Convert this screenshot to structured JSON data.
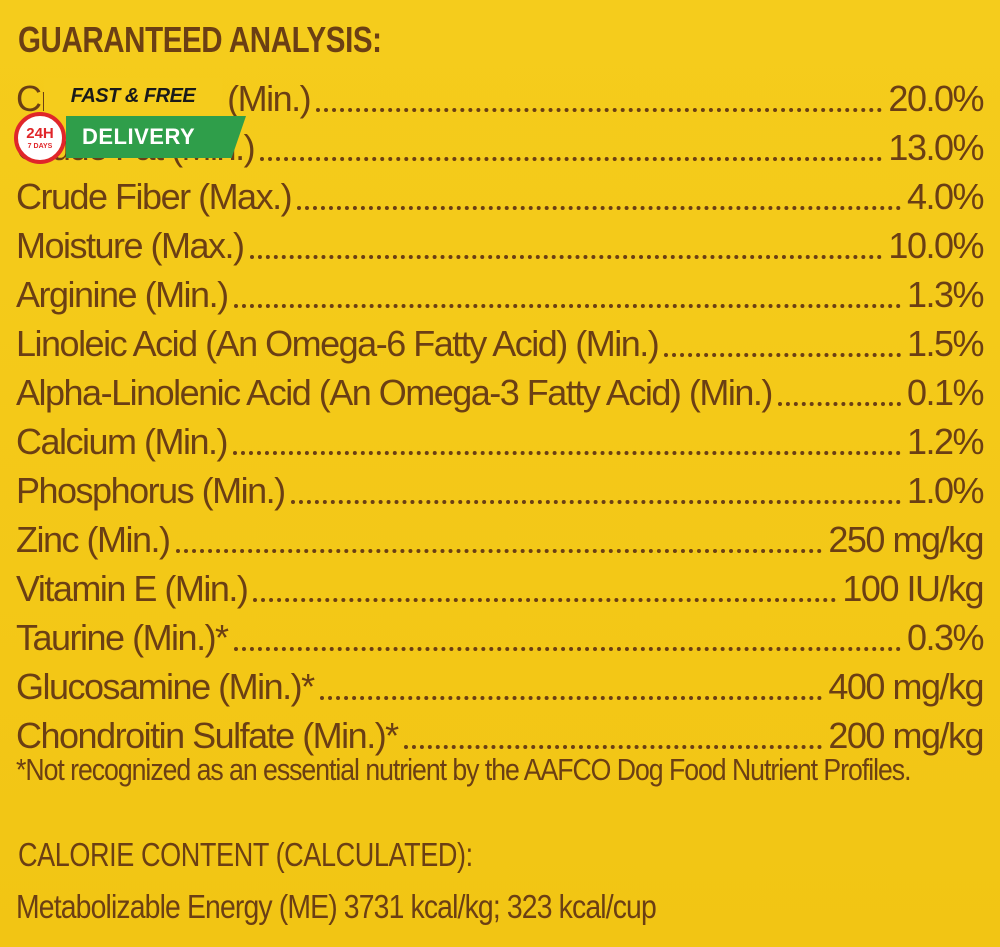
{
  "heading": "GUARANTEED ANALYSIS:",
  "rows": [
    {
      "name": "Crude Protein (Min.)",
      "value": "20.0%"
    },
    {
      "name": "Crude Fat (Min.)",
      "value": "13.0%"
    },
    {
      "name": "Crude Fiber (Max.)",
      "value": "4.0%"
    },
    {
      "name": "Moisture (Max.)",
      "value": "10.0%"
    },
    {
      "name": "Arginine (Min.)",
      "value": "1.3%"
    },
    {
      "name": "Linoleic Acid (An Omega-6 Fatty Acid) (Min.)",
      "value": "1.5%"
    },
    {
      "name": "Alpha-Linolenic Acid (An Omega-3 Fatty Acid) (Min.)",
      "value": "0.1%"
    },
    {
      "name": "Calcium (Min.)",
      "value": "1.2%"
    },
    {
      "name": "Phosphorus (Min.)",
      "value": "1.0%"
    },
    {
      "name": "Zinc (Min.)",
      "value": "250 mg/kg"
    },
    {
      "name": "Vitamin E (Min.)",
      "value": "100 IU/kg"
    },
    {
      "name": "Taurine (Min.)*",
      "value": "0.3%"
    },
    {
      "name": "Glucosamine (Min.)*",
      "value": "400 mg/kg"
    },
    {
      "name": "Chondroitin Sulfate (Min.)*",
      "value": "200 mg/kg"
    }
  ],
  "footnote": "*Not recognized as an essential nutrient by the AAFCO Dog Food Nutrient Profiles.",
  "calorie_heading": "CALORIE CONTENT (CALCULATED):",
  "calorie_line": "Metabolizable Energy (ME) 3731 kcal/kg;  323 kcal/cup",
  "badge": {
    "top_text": "FAST & FREE",
    "circle_big": "24H",
    "circle_small": "7 DAYS",
    "green_text": "DELIVERY"
  },
  "colors": {
    "background": "#f4c91a",
    "text": "#6b3f14",
    "badge_green": "#2f9e4a",
    "badge_red": "#e0262a"
  }
}
